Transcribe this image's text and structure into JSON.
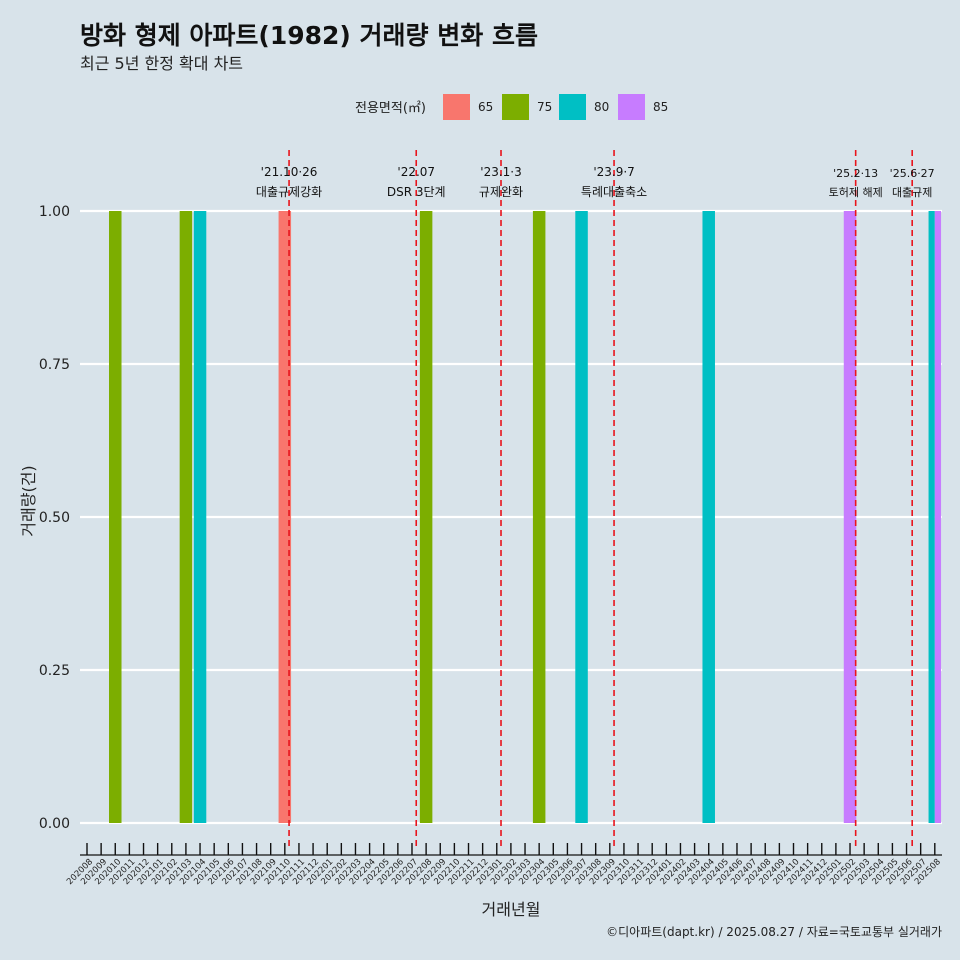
{
  "colors": {
    "background": "#d8e3ea",
    "grid": "#ffffff",
    "event_line": "#e8141c",
    "series": {
      "65": "#f8766d",
      "75": "#7cae00",
      "80": "#00bfc4",
      "85": "#c77cff"
    }
  },
  "caption": "©디아파트(dapt.kr) / 2025.08.27 / 자료=국토교통부 실거래가",
  "chart_data": {
    "type": "bar",
    "title": "방화 형제 아파트(1982) 거래량 변화 흐름",
    "subtitle": "최근 5년 한정 확대 차트",
    "xlabel": "거래년월",
    "ylabel": "거래량(건)",
    "ylim": [
      0,
      1
    ],
    "yticks": [
      "0.00",
      "0.25",
      "0.50",
      "0.75",
      "1.00"
    ],
    "grid": true,
    "legend": {
      "title": "전용면적(㎡)",
      "position": "top",
      "entries": [
        "65",
        "75",
        "80",
        "85"
      ]
    },
    "categories": [
      "202008",
      "202009",
      "202010",
      "202011",
      "202012",
      "202101",
      "202102",
      "202103",
      "202104",
      "202105",
      "202106",
      "202107",
      "202108",
      "202109",
      "202110",
      "202111",
      "202112",
      "202201",
      "202202",
      "202203",
      "202204",
      "202205",
      "202206",
      "202207",
      "202208",
      "202209",
      "202210",
      "202211",
      "202212",
      "202301",
      "202302",
      "202303",
      "202304",
      "202305",
      "202306",
      "202307",
      "202308",
      "202309",
      "202310",
      "202311",
      "202312",
      "202401",
      "202402",
      "202403",
      "202404",
      "202405",
      "202406",
      "202407",
      "202408",
      "202409",
      "202410",
      "202411",
      "202412",
      "202501",
      "202502",
      "202503",
      "202504",
      "202505",
      "202506",
      "202507",
      "202508"
    ],
    "bars": [
      {
        "month": "202010",
        "series": "75",
        "value": 1
      },
      {
        "month": "202103",
        "series": "75",
        "value": 1
      },
      {
        "month": "202104",
        "series": "80",
        "value": 1
      },
      {
        "month": "202110",
        "series": "65",
        "value": 1
      },
      {
        "month": "202208",
        "series": "75",
        "value": 1
      },
      {
        "month": "202304",
        "series": "75",
        "value": 1
      },
      {
        "month": "202307",
        "series": "80",
        "value": 1
      },
      {
        "month": "202404",
        "series": "80",
        "value": 1
      },
      {
        "month": "202502",
        "series": "85",
        "value": 1
      },
      {
        "month": "202508",
        "series": "80",
        "value": 1
      },
      {
        "month": "202508",
        "series": "85",
        "value": 1
      }
    ],
    "events": [
      {
        "x": 14.3,
        "date": "'21.10·26",
        "label": "대출규제강화"
      },
      {
        "x": 23.3,
        "date": "'22.07",
        "label": "DSR 3단계"
      },
      {
        "x": 29.3,
        "date": "'23.1·3",
        "label": "규제완화"
      },
      {
        "x": 37.3,
        "date": "'23.9·7",
        "label": "특례대출축소"
      },
      {
        "x": 54.4,
        "date": "'25.2·13",
        "label": "토허제 해제"
      },
      {
        "x": 58.4,
        "date": "'25.6·27",
        "label": "대출규제"
      }
    ]
  }
}
